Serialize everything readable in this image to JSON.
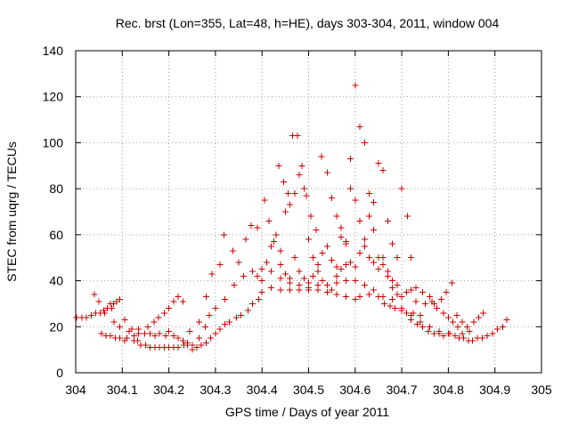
{
  "chart_data": {
    "type": "scatter",
    "title": "Rec. brst (Lon=355, Lat=48, h=HE), days 303-304, 2011, window 004",
    "xlabel": "GPS time / Days of year 2011",
    "ylabel": "STEC from uqrg / TECUs",
    "xlim": [
      304,
      305
    ],
    "ylim": [
      0,
      140
    ],
    "xticks": [
      {
        "value": 304.0,
        "label": "304"
      },
      {
        "value": 304.1,
        "label": "304.1"
      },
      {
        "value": 304.2,
        "label": "304.2"
      },
      {
        "value": 304.3,
        "label": "304.3"
      },
      {
        "value": 304.4,
        "label": "304.4"
      },
      {
        "value": 304.5,
        "label": "304.5"
      },
      {
        "value": 304.6,
        "label": "304.6"
      },
      {
        "value": 304.7,
        "label": "304.7"
      },
      {
        "value": 304.8,
        "label": "304.8"
      },
      {
        "value": 304.9,
        "label": "304.9"
      },
      {
        "value": 305.0,
        "label": "305"
      }
    ],
    "yticks": [
      {
        "value": 0,
        "label": "0"
      },
      {
        "value": 20,
        "label": "20"
      },
      {
        "value": 40,
        "label": "40"
      },
      {
        "value": 60,
        "label": "60"
      },
      {
        "value": 80,
        "label": "80"
      },
      {
        "value": 100,
        "label": "100"
      },
      {
        "value": 120,
        "label": "120"
      },
      {
        "value": 140,
        "label": "140"
      }
    ],
    "grid": true,
    "marker": "plus",
    "color": "#cc0000",
    "series": [
      {
        "points": [
          [
            304.002,
            24
          ],
          [
            304.013,
            24
          ],
          [
            304.023,
            24
          ],
          [
            304.033,
            25
          ],
          [
            304.043,
            26
          ],
          [
            304.053,
            26
          ],
          [
            304.06,
            27
          ],
          [
            304.068,
            28
          ],
          [
            304.075,
            30
          ],
          [
            304.081,
            30
          ],
          [
            304.088,
            31
          ],
          [
            304.095,
            32
          ],
          [
            304.04,
            34
          ],
          [
            304.05,
            31
          ],
          [
            304.062,
            26
          ],
          [
            304.077,
            28
          ],
          [
            304.082,
            22
          ],
          [
            304.095,
            20
          ],
          [
            304.105,
            23
          ],
          [
            304.115,
            18
          ],
          [
            304.125,
            16
          ],
          [
            304.133,
            14
          ],
          [
            304.14,
            12
          ],
          [
            304.15,
            12
          ],
          [
            304.16,
            11
          ],
          [
            304.17,
            11
          ],
          [
            304.18,
            11
          ],
          [
            304.19,
            11
          ],
          [
            304.2,
            11
          ],
          [
            304.21,
            11
          ],
          [
            304.22,
            11
          ],
          [
            304.232,
            12
          ],
          [
            304.24,
            13
          ],
          [
            304.25,
            10
          ],
          [
            304.26,
            11
          ],
          [
            304.27,
            12
          ],
          [
            304.28,
            13
          ],
          [
            304.29,
            15
          ],
          [
            304.3,
            17
          ],
          [
            304.31,
            19
          ],
          [
            304.32,
            21
          ],
          [
            304.33,
            22
          ],
          [
            304.345,
            24
          ],
          [
            304.355,
            25
          ],
          [
            304.37,
            27
          ],
          [
            304.38,
            30
          ],
          [
            304.393,
            32
          ],
          [
            304.4,
            35
          ],
          [
            304.42,
            37
          ],
          [
            304.44,
            36
          ],
          [
            304.46,
            36
          ],
          [
            304.48,
            36
          ],
          [
            304.5,
            36
          ],
          [
            304.52,
            36
          ],
          [
            304.54,
            35
          ],
          [
            304.56,
            34
          ],
          [
            304.58,
            33
          ],
          [
            304.6,
            32
          ],
          [
            304.61,
            33
          ],
          [
            304.63,
            34
          ],
          [
            304.65,
            33
          ],
          [
            304.663,
            30
          ],
          [
            304.675,
            29
          ],
          [
            304.685,
            28
          ],
          [
            304.7,
            27
          ],
          [
            304.71,
            26
          ],
          [
            304.72,
            23
          ],
          [
            304.733,
            21
          ],
          [
            304.745,
            20
          ],
          [
            304.757,
            18
          ],
          [
            304.77,
            17
          ],
          [
            304.78,
            17
          ],
          [
            304.79,
            16
          ],
          [
            304.803,
            17
          ],
          [
            304.815,
            16
          ],
          [
            304.823,
            15
          ],
          [
            304.833,
            15
          ],
          [
            304.843,
            14
          ],
          [
            304.852,
            14
          ],
          [
            304.862,
            15
          ],
          [
            304.873,
            15
          ],
          [
            304.883,
            16
          ],
          [
            304.895,
            17
          ],
          [
            304.905,
            19
          ],
          [
            304.917,
            20
          ],
          [
            304.925,
            23
          ],
          [
            304.055,
            17
          ],
          [
            304.065,
            16
          ],
          [
            304.075,
            16
          ],
          [
            304.085,
            15
          ],
          [
            304.095,
            15
          ],
          [
            304.105,
            14
          ],
          [
            304.11,
            15
          ],
          [
            304.125,
            14
          ],
          [
            304.135,
            17
          ],
          [
            304.148,
            17
          ],
          [
            304.16,
            17
          ],
          [
            304.17,
            16
          ],
          [
            304.18,
            17
          ],
          [
            304.193,
            16
          ],
          [
            304.2,
            18
          ],
          [
            304.21,
            16
          ],
          [
            304.22,
            15
          ],
          [
            304.23,
            14
          ],
          [
            304.24,
            12
          ],
          [
            304.25,
            12
          ],
          [
            304.265,
            15
          ],
          [
            304.278,
            20
          ],
          [
            304.287,
            25
          ],
          [
            304.3,
            28
          ],
          [
            304.32,
            32
          ],
          [
            304.34,
            38
          ],
          [
            304.36,
            42
          ],
          [
            304.38,
            44
          ],
          [
            304.4,
            45
          ],
          [
            304.42,
            44
          ],
          [
            304.44,
            41
          ],
          [
            304.46,
            39
          ],
          [
            304.48,
            38
          ],
          [
            304.5,
            37
          ],
          [
            304.52,
            38
          ],
          [
            304.54,
            38
          ],
          [
            304.56,
            39
          ],
          [
            304.58,
            40
          ],
          [
            304.6,
            40
          ],
          [
            304.62,
            38
          ],
          [
            304.64,
            36
          ],
          [
            304.66,
            33
          ],
          [
            304.68,
            32
          ],
          [
            304.7,
            28
          ],
          [
            304.72,
            25
          ],
          [
            304.74,
            22
          ],
          [
            304.76,
            20
          ],
          [
            304.78,
            18
          ],
          [
            304.8,
            17
          ],
          [
            304.815,
            16
          ],
          [
            304.83,
            17
          ],
          [
            304.845,
            18
          ],
          [
            304.855,
            22
          ],
          [
            304.865,
            24
          ],
          [
            304.875,
            26
          ],
          [
            304.12,
            19
          ],
          [
            304.135,
            19
          ],
          [
            304.155,
            20
          ],
          [
            304.168,
            22
          ],
          [
            304.178,
            24
          ],
          [
            304.19,
            26
          ],
          [
            304.2,
            28
          ],
          [
            304.21,
            31
          ],
          [
            304.22,
            33
          ],
          [
            304.23,
            31
          ],
          [
            304.245,
            18
          ],
          [
            304.265,
            22
          ],
          [
            304.28,
            33
          ],
          [
            304.293,
            43
          ],
          [
            304.31,
            47
          ],
          [
            304.318,
            60
          ],
          [
            304.337,
            53
          ],
          [
            304.35,
            48
          ],
          [
            304.365,
            58
          ],
          [
            304.377,
            64
          ],
          [
            304.39,
            63
          ],
          [
            304.405,
            75
          ],
          [
            304.415,
            66
          ],
          [
            304.425,
            57
          ],
          [
            304.436,
            90
          ],
          [
            304.446,
            83
          ],
          [
            304.456,
            78
          ],
          [
            304.466,
            103
          ],
          [
            304.476,
            103
          ],
          [
            304.486,
            90
          ],
          [
            304.495,
            77
          ],
          [
            304.505,
            68
          ],
          [
            304.516,
            62
          ],
          [
            304.528,
            94
          ],
          [
            304.54,
            87
          ],
          [
            304.55,
            76
          ],
          [
            304.56,
            68
          ],
          [
            304.57,
            63
          ],
          [
            304.58,
            57
          ],
          [
            304.59,
            93
          ],
          [
            304.6,
            125
          ],
          [
            304.61,
            107
          ],
          [
            304.62,
            100
          ],
          [
            304.63,
            78
          ],
          [
            304.64,
            74
          ],
          [
            304.65,
            91
          ],
          [
            304.66,
            88
          ],
          [
            304.67,
            66
          ],
          [
            304.68,
            56
          ],
          [
            304.69,
            50
          ],
          [
            304.7,
            80
          ],
          [
            304.712,
            68
          ],
          [
            304.72,
            50
          ],
          [
            304.73,
            37
          ],
          [
            304.745,
            35
          ],
          [
            304.76,
            33
          ],
          [
            304.77,
            30
          ],
          [
            304.785,
            32
          ],
          [
            304.795,
            35
          ],
          [
            304.808,
            39
          ],
          [
            304.818,
            25
          ],
          [
            304.83,
            22
          ],
          [
            304.84,
            20
          ],
          [
            304.39,
            42
          ],
          [
            304.4,
            40
          ],
          [
            304.41,
            48
          ],
          [
            304.42,
            55
          ],
          [
            304.43,
            60
          ],
          [
            304.44,
            53
          ],
          [
            304.45,
            70
          ],
          [
            304.46,
            73
          ],
          [
            304.47,
            78
          ],
          [
            304.48,
            86
          ],
          [
            304.49,
            80
          ],
          [
            304.5,
            58
          ],
          [
            304.51,
            50
          ],
          [
            304.52,
            47
          ],
          [
            304.53,
            52
          ],
          [
            304.54,
            55
          ],
          [
            304.55,
            49
          ],
          [
            304.56,
            46
          ],
          [
            304.57,
            59
          ],
          [
            304.58,
            56
          ],
          [
            304.59,
            80
          ],
          [
            304.6,
            75
          ],
          [
            304.61,
            66
          ],
          [
            304.62,
            55
          ],
          [
            304.63,
            50
          ],
          [
            304.64,
            48
          ],
          [
            304.65,
            45
          ],
          [
            304.66,
            50
          ],
          [
            304.67,
            44
          ],
          [
            304.68,
            40
          ],
          [
            304.69,
            38
          ],
          [
            304.7,
            33
          ],
          [
            304.71,
            35
          ],
          [
            304.72,
            36
          ],
          [
            304.73,
            31
          ],
          [
            304.44,
            47
          ],
          [
            304.45,
            43
          ],
          [
            304.46,
            41
          ],
          [
            304.47,
            50
          ],
          [
            304.48,
            44
          ],
          [
            304.49,
            41
          ],
          [
            304.5,
            39
          ],
          [
            304.51,
            42
          ],
          [
            304.52,
            44
          ],
          [
            304.53,
            40
          ],
          [
            304.54,
            38
          ],
          [
            304.55,
            36
          ],
          [
            304.56,
            42
          ],
          [
            304.57,
            45
          ],
          [
            304.58,
            47
          ],
          [
            304.59,
            48
          ],
          [
            304.6,
            46
          ],
          [
            304.61,
            52
          ],
          [
            304.62,
            58
          ],
          [
            304.63,
            68
          ],
          [
            304.64,
            62
          ],
          [
            304.65,
            50
          ],
          [
            304.66,
            47
          ],
          [
            304.67,
            42
          ],
          [
            304.68,
            37
          ],
          [
            304.69,
            34
          ],
          [
            304.71,
            26
          ],
          [
            304.725,
            26
          ],
          [
            304.74,
            25
          ],
          [
            304.75,
            30
          ],
          [
            304.765,
            31
          ],
          [
            304.775,
            28
          ],
          [
            304.79,
            26
          ],
          [
            304.8,
            24
          ],
          [
            304.81,
            22
          ],
          [
            304.82,
            20
          ]
        ]
      }
    ]
  }
}
